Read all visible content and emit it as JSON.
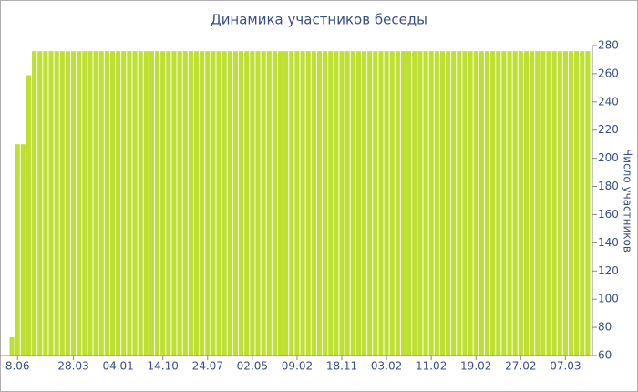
{
  "chart_data": {
    "type": "bar",
    "title": "Динамика участников беседы",
    "y_label": "Число участников",
    "color": "#bde033",
    "categories": [
      null,
      "8.06",
      null,
      null,
      null,
      null,
      null,
      null,
      null,
      null,
      null,
      "28.03",
      null,
      null,
      null,
      null,
      null,
      null,
      null,
      "04.01",
      null,
      null,
      null,
      null,
      null,
      null,
      null,
      "14.10",
      null,
      null,
      null,
      null,
      null,
      null,
      null,
      "24.07",
      null,
      null,
      null,
      null,
      null,
      null,
      null,
      "02.05",
      null,
      null,
      null,
      null,
      null,
      null,
      null,
      "09.02",
      null,
      null,
      null,
      null,
      null,
      null,
      null,
      "18.11",
      null,
      null,
      null,
      null,
      null,
      null,
      null,
      "03.02",
      null,
      null,
      null,
      null,
      null,
      null,
      null,
      "11.02",
      null,
      null,
      null,
      null,
      null,
      null,
      null,
      "19.02",
      null,
      null,
      null,
      null,
      null,
      null,
      null,
      "27.02",
      null,
      null,
      null,
      null,
      null,
      null,
      null,
      "07.03",
      null,
      null,
      null,
      null
    ],
    "values": [
      73,
      210,
      210,
      259,
      276,
      276,
      276,
      276,
      276,
      276,
      276,
      276,
      276,
      276,
      276,
      276,
      276,
      276,
      276,
      276,
      276,
      276,
      276,
      276,
      276,
      276,
      276,
      276,
      276,
      276,
      276,
      276,
      276,
      276,
      276,
      276,
      276,
      276,
      276,
      276,
      276,
      276,
      276,
      276,
      276,
      276,
      276,
      276,
      276,
      276,
      276,
      276,
      276,
      276,
      276,
      276,
      276,
      276,
      276,
      276,
      276,
      276,
      276,
      276,
      276,
      276,
      276,
      276,
      276,
      276,
      276,
      276,
      276,
      276,
      276,
      276,
      276,
      276,
      276,
      276,
      276,
      276,
      276,
      276,
      276,
      276,
      276,
      276,
      276,
      276,
      276,
      276,
      276,
      276,
      276,
      276,
      276,
      276,
      276,
      276,
      276,
      276,
      276,
      276
    ],
    "ylim": [
      60,
      280
    ],
    "yticks": [
      60,
      80,
      100,
      120,
      140,
      160,
      180,
      200,
      220,
      240,
      260,
      280
    ],
    "y_axis_side": "right"
  }
}
